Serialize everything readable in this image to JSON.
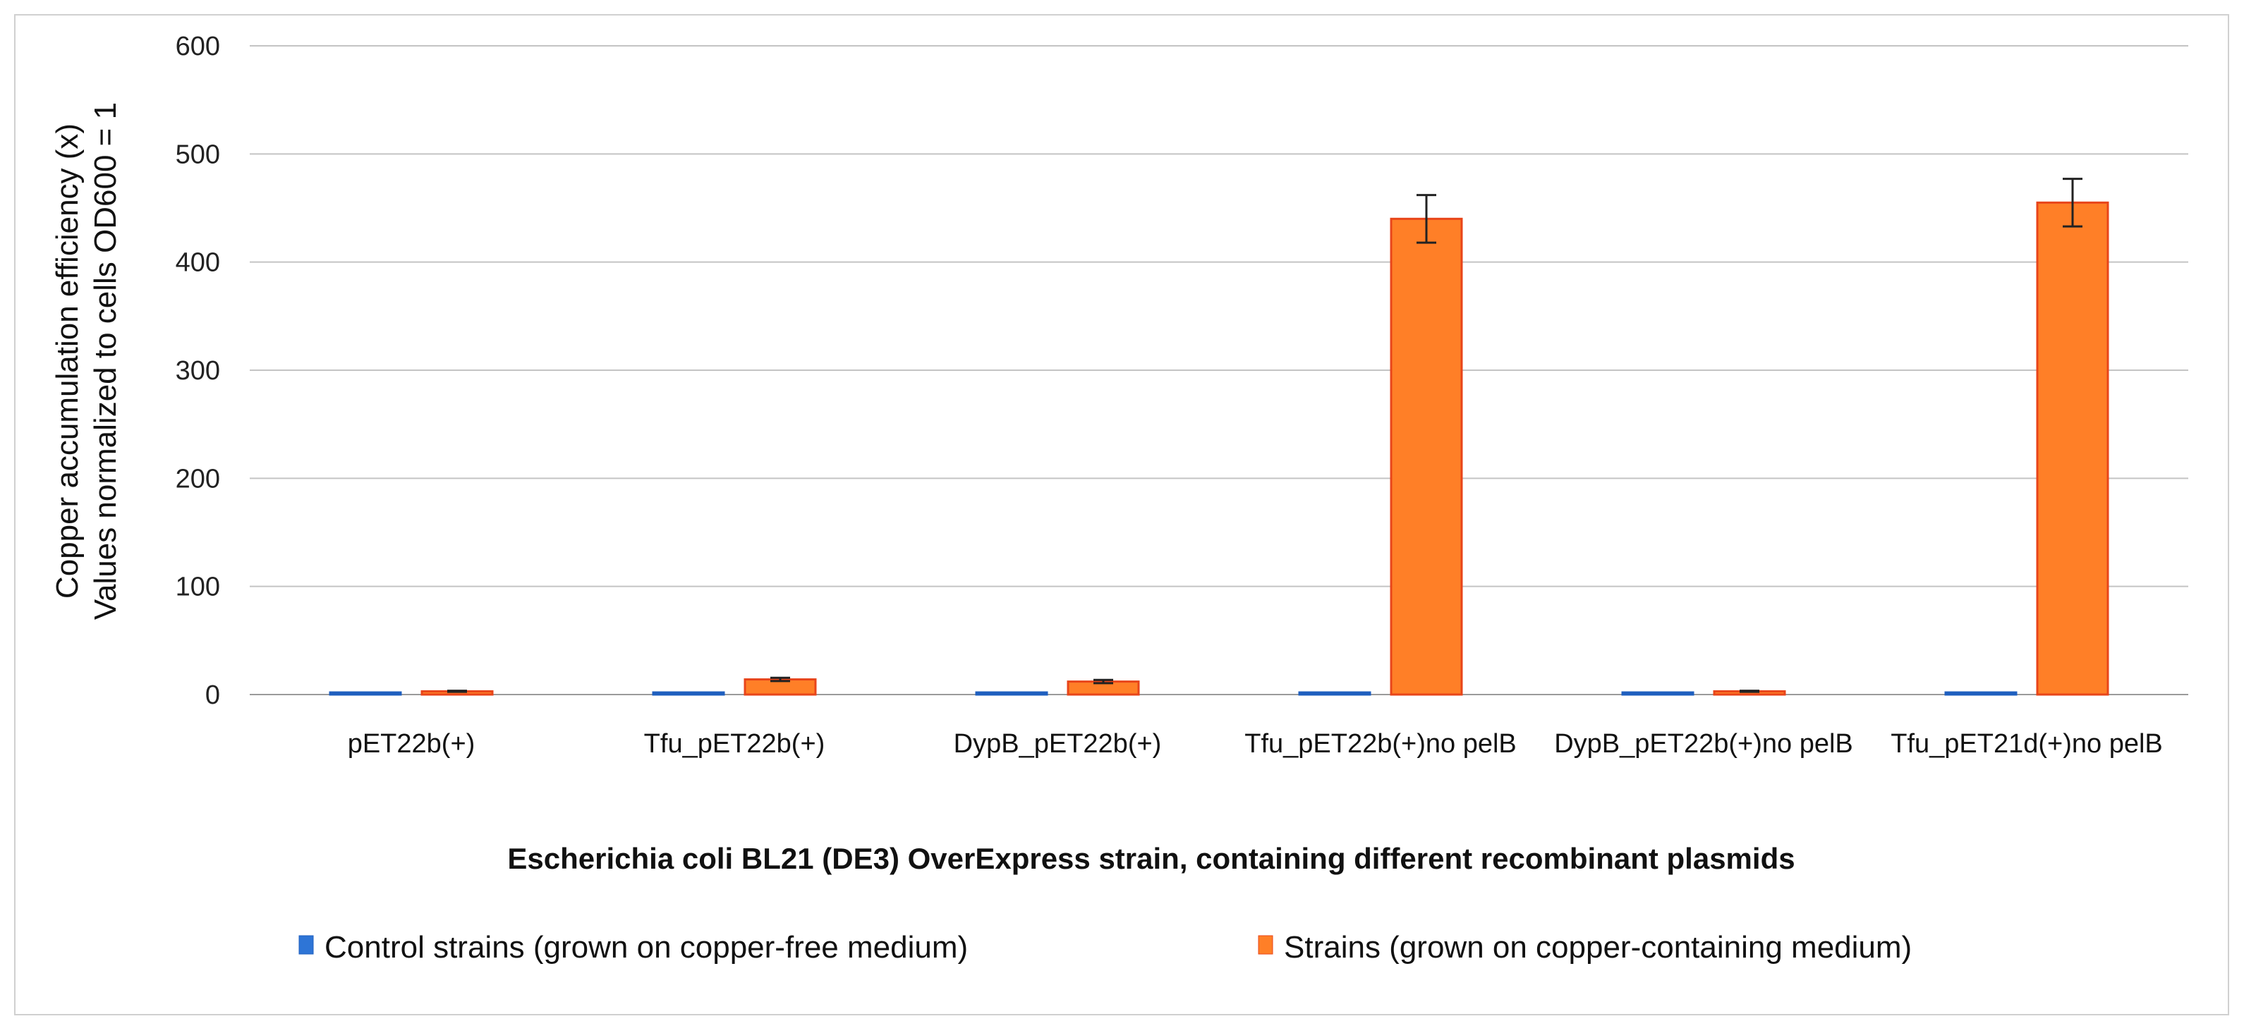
{
  "chart_data": {
    "type": "bar",
    "title": "",
    "categories": [
      "pET22b(+)",
      "Tfu_pET22b(+)",
      "DypB_pET22b(+)",
      "Tfu_pET22b(+)no pelB",
      "DypB_pET22b(+)no pelB",
      "Tfu_pET21d(+)no pelB"
    ],
    "series": [
      {
        "name": "Control strains (grown on copper-free medium)",
        "color": "#2e75d6",
        "values": [
          1,
          1,
          1,
          1,
          1,
          1
        ],
        "errors": [
          0,
          0,
          0,
          0,
          0,
          0
        ]
      },
      {
        "name": "Strains (grown on copper-containing medium)",
        "color": "#ff7f27",
        "values": [
          3,
          14,
          12,
          440,
          3,
          455
        ],
        "errors": [
          0.5,
          1.5,
          1.5,
          22,
          0.5,
          22
        ]
      }
    ],
    "xlabel": "Escherichia coli BL21 (DE3) OverExpress strain, containing different recombinant plasmids",
    "ylabel_lines": [
      "Copper accumulation efficiency (x)",
      "Values normalized to cells OD600 = 1"
    ],
    "yticks": [
      0,
      100,
      200,
      300,
      400,
      500,
      600
    ],
    "ylim": [
      0,
      600
    ],
    "grid": true,
    "legend_position": "bottom"
  }
}
